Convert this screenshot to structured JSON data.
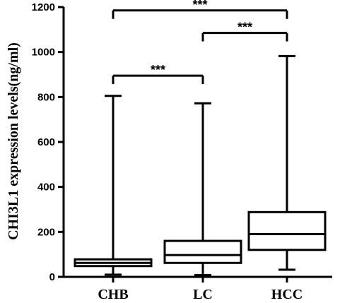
{
  "chart_data": {
    "type": "boxplot",
    "ylabel": "CHI3L1 expression levels(ng/ml)",
    "xlabel": "",
    "ylim": [
      0,
      1200
    ],
    "yticks": [
      0,
      200,
      400,
      600,
      800,
      1000,
      1200
    ],
    "categories": [
      "CHB",
      "LC",
      "HCC"
    ],
    "boxes": [
      {
        "category": "CHB",
        "min": 10,
        "q1": 48,
        "median": 62,
        "q3": 78,
        "max": 805
      },
      {
        "category": "LC",
        "min": 8,
        "q1": 62,
        "median": 97,
        "q3": 160,
        "max": 772
      },
      {
        "category": "HCC",
        "min": 32,
        "q1": 120,
        "median": 190,
        "q3": 288,
        "max": 982
      }
    ],
    "significance": [
      {
        "from": "CHB",
        "to": "HCC",
        "y": 1185,
        "label": "***"
      },
      {
        "from": "LC",
        "to": "HCC",
        "y": 1085,
        "label": "***"
      },
      {
        "from": "CHB",
        "to": "LC",
        "y": 895,
        "label": "***"
      }
    ],
    "grid": false,
    "colors": {
      "stroke": "#000000",
      "box_fill": "#ffffff"
    }
  }
}
